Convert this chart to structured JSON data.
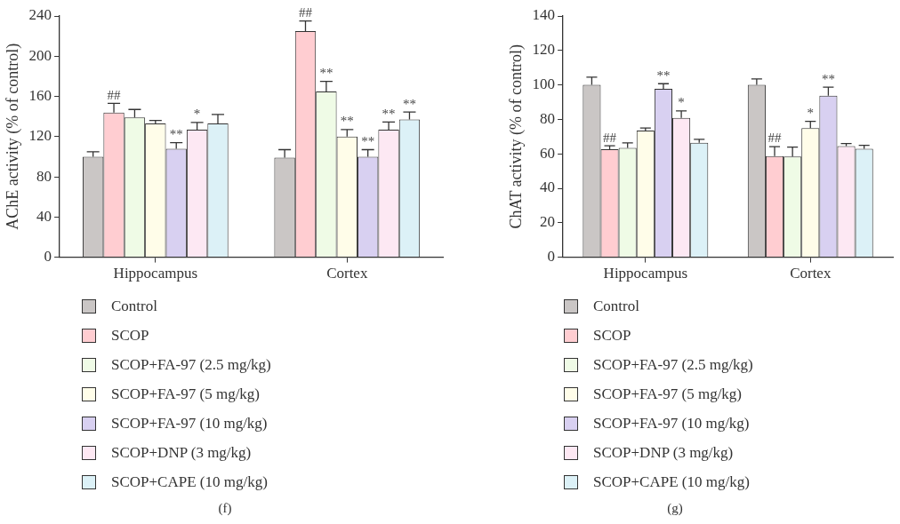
{
  "chart_data": [
    {
      "type": "bar",
      "title": "(f)",
      "ylabel": "AChE activity (% of control)",
      "categories": [
        "Hippocampus",
        "Cortex"
      ],
      "ylim": [
        0,
        240
      ],
      "yticks": [
        0,
        40,
        80,
        120,
        160,
        200,
        240
      ],
      "grid": false,
      "legend": "bottom left",
      "series": [
        {
          "name": "Control",
          "color": "#cac6c5",
          "values": [
            100,
            99
          ],
          "errors": [
            5,
            8
          ]
        },
        {
          "name": "SCOP",
          "color": "#ffcdd1",
          "values": [
            144,
            225
          ],
          "errors": [
            9,
            10
          ]
        },
        {
          "name": "SCOP+FA-97 (2.5 mg/kg)",
          "color": "#effbe6",
          "values": [
            139,
            165
          ],
          "errors": [
            8,
            10
          ]
        },
        {
          "name": "SCOP+FA-97 (5 mg/kg)",
          "color": "#fffde9",
          "values": [
            133,
            120
          ],
          "errors": [
            3,
            7
          ]
        },
        {
          "name": "SCOP+FA-97 (10 mg/kg)",
          "color": "#d8d0f1",
          "values": [
            108,
            100
          ],
          "errors": [
            6,
            7
          ]
        },
        {
          "name": "SCOP+DNP (3 mg/kg)",
          "color": "#fde8f3",
          "values": [
            127,
            127
          ],
          "errors": [
            7,
            7.5
          ]
        },
        {
          "name": "SCOP+CAPE (10 mg/kg)",
          "color": "#dcf1f7",
          "values": [
            133,
            137
          ],
          "errors": [
            9,
            7.5
          ]
        }
      ],
      "annotations": [
        "##",
        "**",
        "*",
        "##",
        "**",
        "**",
        "**",
        "**",
        "**"
      ]
    },
    {
      "type": "bar",
      "title": "(g)",
      "ylabel": "ChAT activity (% of control)",
      "categories": [
        "Hippocampus",
        "Cortex"
      ],
      "ylim": [
        0,
        140
      ],
      "yticks": [
        0,
        20,
        40,
        60,
        80,
        100,
        120,
        140
      ],
      "grid": false,
      "legend": "bottom left",
      "series": [
        {
          "name": "Control",
          "color": "#cac6c5",
          "values": [
            100,
            100
          ],
          "errors": [
            4.5,
            3.5
          ]
        },
        {
          "name": "SCOP",
          "color": "#ffcdd1",
          "values": [
            62.7,
            58.7
          ],
          "errors": [
            2,
            5.5
          ]
        },
        {
          "name": "SCOP+FA-97 (2.5 mg/kg)",
          "color": "#effbe6",
          "values": [
            63.4,
            58.4
          ],
          "errors": [
            3,
            5.5
          ]
        },
        {
          "name": "SCOP+FA-97 (5 mg/kg)",
          "color": "#fffde9",
          "values": [
            73.5,
            74.9
          ],
          "errors": [
            1.5,
            4
          ]
        },
        {
          "name": "SCOP+FA-97 (10 mg/kg)",
          "color": "#d8d0f1",
          "values": [
            97.7,
            93.7
          ],
          "errors": [
            3,
            5
          ]
        },
        {
          "name": "SCOP+DNP (3 mg/kg)",
          "color": "#fde8f3",
          "values": [
            80.9,
            64.5
          ],
          "errors": [
            4,
            1.5
          ]
        },
        {
          "name": "SCOP+CAPE (10 mg/kg)",
          "color": "#dcf1f7",
          "values": [
            66.4,
            62.9
          ],
          "errors": [
            2,
            2
          ]
        }
      ],
      "annotations": [
        "##",
        "**",
        "*",
        "##",
        "*",
        "**"
      ]
    }
  ]
}
